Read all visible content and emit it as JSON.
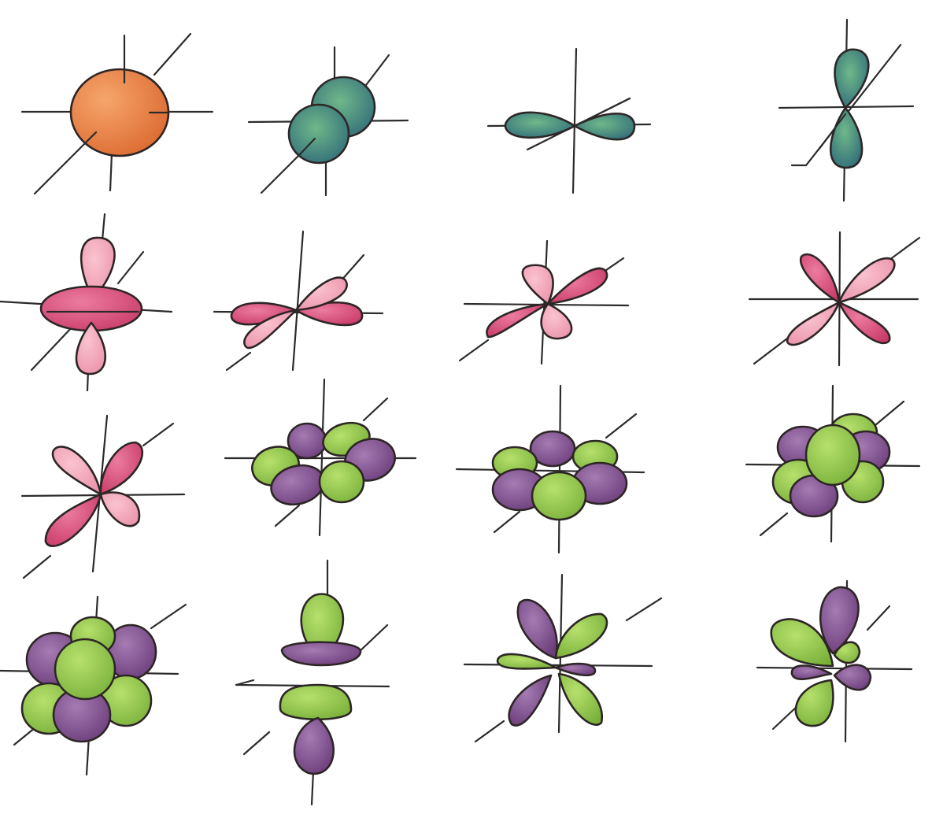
{
  "palette": {
    "s": [
      "#f08a4a",
      "#d9642e"
    ],
    "p": [
      "#5ea68a",
      "#2f6f7a"
    ],
    "d_pos": [
      "#f7b3c4",
      "#e88aa4"
    ],
    "d_neg": [
      "#e66a92",
      "#c93d6b"
    ],
    "f_pos": [
      "#a6d65c",
      "#7ab43c"
    ],
    "f_neg": [
      "#9a6aa6",
      "#6e3f7e"
    ],
    "outline": "#2e2626",
    "axis": "#2b2b2b"
  },
  "orbitals": [
    {
      "row": 0,
      "col": 0,
      "subshell": "s",
      "lobes": 1
    },
    {
      "row": 0,
      "col": 1,
      "subshell": "p",
      "lobes": 2
    },
    {
      "row": 0,
      "col": 2,
      "subshell": "p",
      "lobes": 2
    },
    {
      "row": 0,
      "col": 3,
      "subshell": "p",
      "lobes": 2
    },
    {
      "row": 1,
      "col": 0,
      "subshell": "d",
      "lobes": 3
    },
    {
      "row": 1,
      "col": 1,
      "subshell": "d",
      "lobes": 4
    },
    {
      "row": 1,
      "col": 2,
      "subshell": "d",
      "lobes": 4
    },
    {
      "row": 1,
      "col": 3,
      "subshell": "d",
      "lobes": 4
    },
    {
      "row": 2,
      "col": 0,
      "subshell": "d",
      "lobes": 4
    },
    {
      "row": 2,
      "col": 1,
      "subshell": "f",
      "lobes": 8
    },
    {
      "row": 2,
      "col": 2,
      "subshell": "f",
      "lobes": 8
    },
    {
      "row": 2,
      "col": 3,
      "subshell": "f",
      "lobes": 8
    },
    {
      "row": 3,
      "col": 0,
      "subshell": "f",
      "lobes": 8
    },
    {
      "row": 3,
      "col": 1,
      "subshell": "f",
      "lobes": 4
    },
    {
      "row": 3,
      "col": 2,
      "subshell": "f",
      "lobes": 6
    },
    {
      "row": 3,
      "col": 3,
      "subshell": "f",
      "lobes": 6
    }
  ]
}
